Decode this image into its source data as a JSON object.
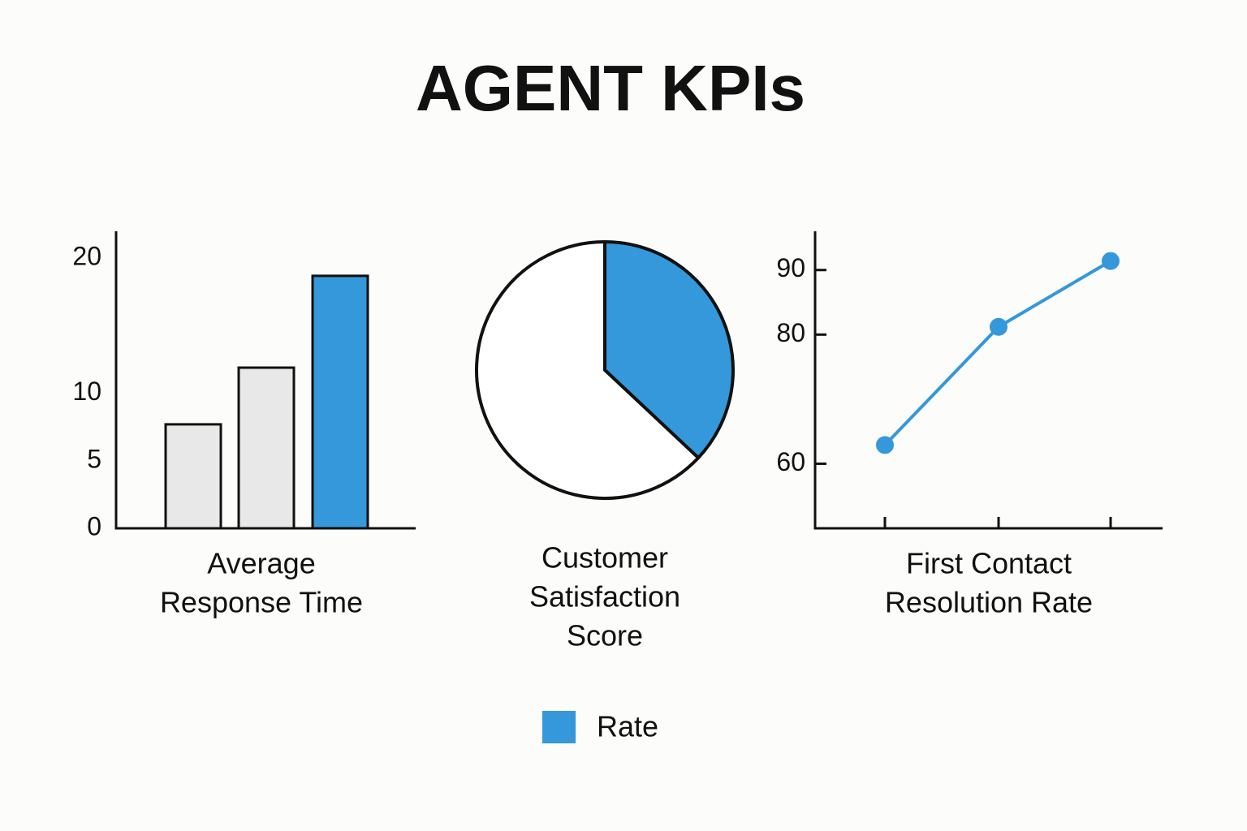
{
  "title": "AGENT KPIs",
  "legend": {
    "label": "Rate",
    "color": "#3498db"
  },
  "chart_data": [
    {
      "type": "bar",
      "label": [
        "Average",
        "Response Time"
      ],
      "categories": [
        null,
        null,
        null
      ],
      "values": [
        7.7,
        11.9,
        18.7
      ],
      "colors": [
        "#e8e8e8",
        "#e8e8e8",
        "#3498db"
      ],
      "ylim": [
        0,
        22
      ],
      "yticks": [
        0,
        5,
        10,
        20
      ]
    },
    {
      "type": "pie",
      "label": [
        "Customer",
        "Satisfaction",
        "Score"
      ],
      "categories": [
        null,
        null
      ],
      "values": [
        37,
        63
      ],
      "colors": [
        "#3498db",
        "#ffffff"
      ]
    },
    {
      "type": "line",
      "label": [
        "First Contact",
        "Resolution Rate"
      ],
      "categories": [
        null,
        null,
        null
      ],
      "values": [
        62.9,
        81.2,
        91.4
      ],
      "color": "#3498db",
      "ylim": [
        50,
        96
      ],
      "yticks": [
        60,
        80,
        90
      ]
    }
  ]
}
